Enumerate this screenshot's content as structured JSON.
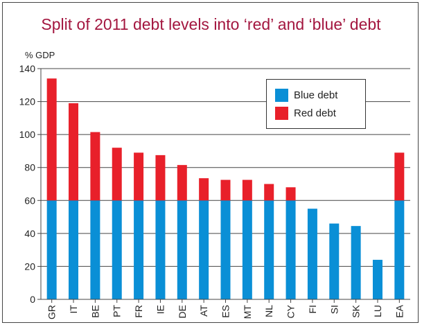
{
  "colors": {
    "blue": "#0a8fd6",
    "red": "#e8202a",
    "title": "#a3163f"
  },
  "chart_data": {
    "type": "bar",
    "stacked": true,
    "title": "Split of 2011 debt levels into ‘red’ and ‘blue’ debt",
    "ylabel": "% GDP",
    "xlabel": "",
    "ylim": [
      0,
      140
    ],
    "yticks": [
      0,
      20,
      40,
      60,
      80,
      100,
      120,
      140
    ],
    "grid": true,
    "legend_position": "top-right",
    "categories": [
      "GR",
      "IT",
      "BE",
      "PT",
      "FR",
      "IE",
      "DE",
      "AT",
      "ES",
      "MT",
      "NL",
      "CY",
      "FI",
      "SI",
      "SK",
      "LU",
      "EA"
    ],
    "series": [
      {
        "name": "Blue debt",
        "values": [
          60,
          60,
          60,
          60,
          60,
          60,
          60,
          60,
          60,
          60,
          60,
          60,
          55,
          46,
          44.5,
          24,
          60
        ]
      },
      {
        "name": "Red debt",
        "values": [
          74,
          59,
          41.5,
          32,
          29,
          27.5,
          21.5,
          13.5,
          12.5,
          12.5,
          10,
          8,
          0,
          0,
          0,
          0,
          29
        ]
      }
    ]
  }
}
